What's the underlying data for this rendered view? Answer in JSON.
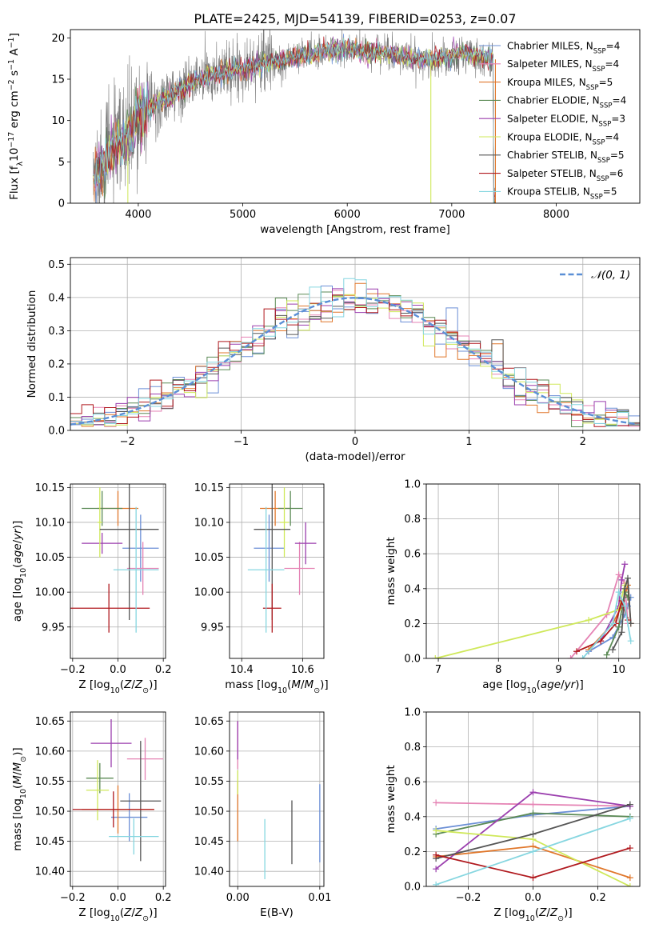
{
  "figure": {
    "title": "PLATE=2425, MJD=54139, FIBERID=0253, z=0.07"
  },
  "series_styles": [
    {
      "name": "Chabrier MILES",
      "nssp": "4",
      "color": "#6b8fd6"
    },
    {
      "name": "Salpeter MILES",
      "nssp": "4",
      "color": "#e583b4"
    },
    {
      "name": "Kroupa MILES",
      "nssp": "5",
      "color": "#e0772b"
    },
    {
      "name": "Chabrier ELODIE",
      "nssp": "4",
      "color": "#5b8a55"
    },
    {
      "name": "Salpeter ELODIE",
      "nssp": "3",
      "color": "#9b3fae"
    },
    {
      "name": "Kroupa ELODIE",
      "nssp": "4",
      "color": "#cfe85a"
    },
    {
      "name": "Chabrier STELIB",
      "nssp": "5",
      "color": "#555555"
    },
    {
      "name": "Salpeter STELIB",
      "nssp": "6",
      "color": "#b0191e"
    },
    {
      "name": "Kroupa STELIB",
      "nssp": "5",
      "color": "#86d6e0"
    }
  ],
  "chart_data": [
    {
      "id": "spectrum",
      "type": "line",
      "title": "PLATE=2425, MJD=54139, FIBERID=0253, z=0.07",
      "xlabel": "wavelength [Angstrom, rest frame]",
      "ylabel_parts": [
        "Flux [f",
        "λ",
        "10",
        "−17",
        " erg cm",
        "−2",
        " s",
        "−1",
        " A",
        "−1",
        "]"
      ],
      "xlim": [
        3350,
        8800
      ],
      "ylim": [
        0,
        21
      ],
      "xticks": [
        "4000",
        "5000",
        "6000",
        "7000",
        "8000"
      ],
      "yticks": [
        "0",
        "5",
        "10",
        "15",
        "20"
      ],
      "legend_position": "upper-right",
      "legend_suffix": "N",
      "legend_sub": "SSP",
      "continuum": [
        [
          3570,
          3.2
        ],
        [
          3650,
          4.8
        ],
        [
          3750,
          6.5
        ],
        [
          3850,
          7.2
        ],
        [
          3950,
          8.5
        ],
        [
          4000,
          11
        ],
        [
          4100,
          11.5
        ],
        [
          4200,
          12.2
        ],
        [
          4300,
          12.8
        ],
        [
          4400,
          13.6
        ],
        [
          4500,
          14.3
        ],
        [
          4600,
          15
        ],
        [
          4700,
          15.5
        ],
        [
          4800,
          15.9
        ],
        [
          4900,
          16.2
        ],
        [
          5000,
          16.3
        ],
        [
          5100,
          16.6
        ],
        [
          5200,
          16.9
        ],
        [
          5300,
          17.1
        ],
        [
          5400,
          17.4
        ],
        [
          5500,
          17.7
        ],
        [
          5600,
          18
        ],
        [
          5700,
          18.2
        ],
        [
          5800,
          18.4
        ],
        [
          5900,
          18.5
        ],
        [
          6000,
          18.6
        ],
        [
          6100,
          18.5
        ],
        [
          6200,
          18.3
        ],
        [
          6300,
          18.2
        ],
        [
          6400,
          18
        ],
        [
          6500,
          17.8
        ],
        [
          6600,
          17.6
        ],
        [
          6700,
          17.5
        ],
        [
          6800,
          17.3
        ],
        [
          6900,
          17.6
        ],
        [
          7000,
          17.9
        ],
        [
          7100,
          18.1
        ],
        [
          7200,
          17.9
        ],
        [
          7300,
          17.6
        ],
        [
          7400,
          17.4
        ]
      ]
    },
    {
      "id": "residuals",
      "type": "line",
      "xlabel": "(data-model)/error",
      "ylabel": "Normed distribution",
      "xlim": [
        -2.5,
        2.5
      ],
      "ylim": [
        0,
        0.52
      ],
      "xticks": [
        "−2",
        "−1",
        "0",
        "1",
        "2"
      ],
      "yticks": [
        "0.0",
        "0.1",
        "0.2",
        "0.3",
        "0.4",
        "0.5"
      ],
      "legend_position": "upper-right",
      "legend_label": "𝒩(0, 1)",
      "reference_curve": "normal(0,1)",
      "reference_color": "#5b8fd6"
    },
    {
      "id": "age_vs_Z",
      "type": "scatter",
      "xlabel": "Z [log10(Z/Z⊙)]",
      "ylabel": "age  [log10(age/yr)]",
      "xlim": [
        -0.21,
        0.21
      ],
      "ylim": [
        9.905,
        10.155
      ],
      "xticks": [
        "−0.2",
        "0.0",
        "0.2"
      ],
      "yticks": [
        "9.95",
        "10.00",
        "10.05",
        "10.10",
        "10.15"
      ],
      "points": [
        {
          "series": 0,
          "x": 0.1,
          "y": 10.063,
          "xerr": 0.08,
          "yerr": 0.048
        },
        {
          "series": 1,
          "x": 0.11,
          "y": 10.034,
          "xerr": 0.07,
          "yerr": 0.038
        },
        {
          "series": 2,
          "x": 0.0,
          "y": 10.12,
          "xerr": 0.09,
          "yerr": 0.025
        },
        {
          "series": 3,
          "x": -0.07,
          "y": 10.12,
          "xerr": 0.09,
          "yerr": 0.025
        },
        {
          "series": 4,
          "x": -0.07,
          "y": 10.07,
          "xerr": 0.09,
          "yerr": 0.015
        },
        {
          "series": 5,
          "x": -0.08,
          "y": 10.1,
          "xerr": 0.01,
          "yerr": 0.05
        },
        {
          "series": 6,
          "x": 0.05,
          "y": 10.09,
          "xerr": 0.13,
          "yerr": 0.13
        },
        {
          "series": 7,
          "x": -0.04,
          "y": 9.977,
          "xerr": 0.18,
          "yerr": 0.035
        },
        {
          "series": 8,
          "x": 0.08,
          "y": 10.032,
          "xerr": 0.1,
          "yerr": 0.09
        }
      ]
    },
    {
      "id": "age_vs_mass",
      "type": "scatter",
      "xlabel": "mass [log10(M/M⊙)]",
      "ylabel": "",
      "xlim": [
        10.36,
        10.67
      ],
      "ylim": [
        9.905,
        10.155
      ],
      "xticks": [
        "10.4",
        "10.6"
      ],
      "yticks": [
        "9.95",
        "10.00",
        "10.05",
        "10.10",
        "10.15"
      ],
      "points": [
        {
          "series": 0,
          "x": 10.49,
          "y": 10.063,
          "xerr": 0.05,
          "yerr": 0.048
        },
        {
          "series": 1,
          "x": 10.59,
          "y": 10.034,
          "xerr": 0.05,
          "yerr": 0.038
        },
        {
          "series": 2,
          "x": 10.51,
          "y": 10.12,
          "xerr": 0.05,
          "yerr": 0.025
        },
        {
          "series": 3,
          "x": 10.56,
          "y": 10.12,
          "xerr": 0.04,
          "yerr": 0.025
        },
        {
          "series": 4,
          "x": 10.61,
          "y": 10.07,
          "xerr": 0.035,
          "yerr": 0.03
        },
        {
          "series": 5,
          "x": 10.54,
          "y": 10.1,
          "xerr": 0.015,
          "yerr": 0.05
        },
        {
          "series": 6,
          "x": 10.5,
          "y": 10.09,
          "xerr": 0.06,
          "yerr": 0.13
        },
        {
          "series": 7,
          "x": 10.5,
          "y": 9.977,
          "xerr": 0.03,
          "yerr": 0.035
        },
        {
          "series": 8,
          "x": 10.48,
          "y": 10.032,
          "xerr": 0.06,
          "yerr": 0.09
        }
      ]
    },
    {
      "id": "massweight_vs_age",
      "type": "line",
      "xlabel": "age  [log10(age/yr)]",
      "ylabel": "mass weight",
      "xlim": [
        6.8,
        10.35
      ],
      "ylim": [
        0,
        1
      ],
      "xticks": [
        "7",
        "8",
        "9",
        "10"
      ],
      "yticks": [
        "0.0",
        "0.2",
        "0.4",
        "0.6",
        "0.8",
        "1.0"
      ],
      "series": [
        {
          "series": 0,
          "x": [
            9.5,
            9.9,
            10.1,
            10.15,
            10.2
          ],
          "y": [
            0.04,
            0.12,
            0.25,
            0.3,
            0.35
          ]
        },
        {
          "series": 1,
          "x": [
            9.2,
            9.8,
            10.0,
            10.1,
            10.15
          ],
          "y": [
            0.0,
            0.25,
            0.48,
            0.43,
            0.2
          ]
        },
        {
          "series": 2,
          "x": [
            9.5,
            9.9,
            10.05,
            10.15,
            10.2
          ],
          "y": [
            0.05,
            0.2,
            0.3,
            0.42,
            0.2
          ]
        },
        {
          "series": 3,
          "x": [
            9.8,
            10.0,
            10.1,
            10.15
          ],
          "y": [
            0.02,
            0.18,
            0.38,
            0.35
          ]
        },
        {
          "series": 4,
          "x": [
            9.7,
            10.0,
            10.05,
            10.1
          ],
          "y": [
            0.1,
            0.3,
            0.45,
            0.54
          ]
        },
        {
          "series": 5,
          "x": [
            6.95,
            9.5,
            10.0,
            10.1
          ],
          "y": [
            0.0,
            0.22,
            0.28,
            0.42
          ]
        },
        {
          "series": 6,
          "x": [
            9.9,
            10.05,
            10.1,
            10.15,
            10.2
          ],
          "y": [
            0.05,
            0.15,
            0.4,
            0.46,
            0.2
          ]
        },
        {
          "series": 7,
          "x": [
            9.3,
            9.7,
            9.95,
            10.05,
            10.15
          ],
          "y": [
            0.04,
            0.1,
            0.2,
            0.33,
            0.22
          ]
        },
        {
          "series": 8,
          "x": [
            9.4,
            9.9,
            10.0,
            10.1,
            10.2
          ],
          "y": [
            0.0,
            0.2,
            0.38,
            0.3,
            0.1
          ]
        }
      ]
    },
    {
      "id": "mass_vs_Z",
      "type": "scatter",
      "xlabel": "Z [log10(Z/Z⊙)]",
      "ylabel": "mass [log10(M/M⊙)]",
      "xlim": [
        -0.21,
        0.21
      ],
      "ylim": [
        10.375,
        10.665
      ],
      "xticks": [
        "−0.2",
        "0.0",
        "0.2"
      ],
      "yticks": [
        "10.40",
        "10.45",
        "10.50",
        "10.55",
        "10.60",
        "10.65"
      ],
      "points": [
        {
          "series": 0,
          "x": 0.05,
          "y": 10.49,
          "xerr": 0.08,
          "yerr": 0.04
        },
        {
          "series": 1,
          "x": 0.12,
          "y": 10.587,
          "xerr": 0.08,
          "yerr": 0.035
        },
        {
          "series": 2,
          "x": 0.0,
          "y": 10.503,
          "xerr": 0.16,
          "yerr": 0.04
        },
        {
          "series": 3,
          "x": -0.08,
          "y": 10.555,
          "xerr": 0.06,
          "yerr": 0.025
        },
        {
          "series": 4,
          "x": -0.03,
          "y": 10.613,
          "xerr": 0.09,
          "yerr": 0.04
        },
        {
          "series": 5,
          "x": -0.09,
          "y": 10.535,
          "xerr": 0.05,
          "yerr": 0.05
        },
        {
          "series": 6,
          "x": 0.1,
          "y": 10.517,
          "xerr": 0.09,
          "yerr": 0.1
        },
        {
          "series": 7,
          "x": -0.02,
          "y": 10.503,
          "xerr": 0.18,
          "yerr": 0.03
        },
        {
          "series": 8,
          "x": 0.07,
          "y": 10.458,
          "xerr": 0.11,
          "yerr": 0.03
        }
      ]
    },
    {
      "id": "mass_vs_ebv",
      "type": "scatter",
      "xlabel": "E(B-V)",
      "ylabel": "",
      "xlim": [
        -0.001,
        0.0105
      ],
      "ylim": [
        10.375,
        10.665
      ],
      "xticks": [
        "0.00",
        "0.01"
      ],
      "yticks": [
        "10.40",
        "10.45",
        "10.50",
        "10.55",
        "10.60",
        "10.65"
      ],
      "points": [
        {
          "series": 0,
          "x": 0.01,
          "y": 10.48,
          "xerr": 0,
          "yerr": 0.065
        },
        {
          "series": 1,
          "x": 0.0,
          "y": 10.61,
          "xerr": 0,
          "yerr": 0.04
        },
        {
          "series": 2,
          "x": 0.0,
          "y": 10.5,
          "xerr": 0,
          "yerr": 0.05
        },
        {
          "series": 4,
          "x": 0.0,
          "y": 10.618,
          "xerr": 0,
          "yerr": 0.032
        },
        {
          "series": 5,
          "x": 0.0,
          "y": 10.548,
          "xerr": 0,
          "yerr": 0.02
        },
        {
          "series": 6,
          "x": 0.0066,
          "y": 10.465,
          "xerr": 0,
          "yerr": 0.053
        },
        {
          "series": 8,
          "x": 0.0033,
          "y": 10.437,
          "xerr": 0,
          "yerr": 0.05
        }
      ]
    },
    {
      "id": "massweight_vs_Z",
      "type": "line",
      "xlabel": "Z [log10(Z/Z⊙)]",
      "ylabel": "mass weight",
      "xlim": [
        -0.33,
        0.33
      ],
      "ylim": [
        0,
        1
      ],
      "xticks": [
        "−0.2",
        "0.0",
        "0.2"
      ],
      "yticks": [
        "0.0",
        "0.2",
        "0.4",
        "0.6",
        "0.8",
        "1.0"
      ],
      "series": [
        {
          "series": 0,
          "x": [
            -0.3,
            0.0,
            0.3
          ],
          "y": [
            0.33,
            0.41,
            0.46
          ]
        },
        {
          "series": 1,
          "x": [
            -0.3,
            0.0,
            0.3
          ],
          "y": [
            0.48,
            0.47,
            0.46
          ]
        },
        {
          "series": 2,
          "x": [
            -0.3,
            0.0,
            0.3
          ],
          "y": [
            0.17,
            0.23,
            0.05
          ]
        },
        {
          "series": 3,
          "x": [
            -0.3,
            0.0,
            0.3
          ],
          "y": [
            0.3,
            0.42,
            0.4
          ]
        },
        {
          "series": 4,
          "x": [
            -0.3,
            0.0,
            0.3
          ],
          "y": [
            0.1,
            0.54,
            0.46
          ]
        },
        {
          "series": 5,
          "x": [
            -0.3,
            0.0,
            0.3
          ],
          "y": [
            0.32,
            0.27,
            0.0
          ]
        },
        {
          "series": 6,
          "x": [
            -0.3,
            0.0,
            0.3
          ],
          "y": [
            0.16,
            0.3,
            0.47
          ]
        },
        {
          "series": 7,
          "x": [
            -0.3,
            0.0,
            0.3
          ],
          "y": [
            0.18,
            0.05,
            0.22
          ]
        },
        {
          "series": 8,
          "x": [
            -0.3,
            0.0,
            0.3
          ],
          "y": [
            0.01,
            0.2,
            0.39
          ]
        }
      ]
    }
  ]
}
